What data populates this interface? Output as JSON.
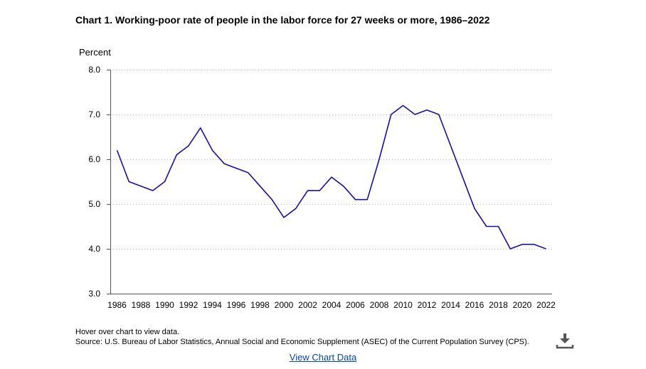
{
  "chart_data": {
    "type": "line",
    "title": "Chart 1. Working-poor rate of people in the labor force for 27 weeks or more, 1986–2022",
    "ylabel": "Percent",
    "xlabel": "",
    "ylim": [
      3.0,
      8.0
    ],
    "yticks": [
      "8.0",
      "7.0",
      "6.0",
      "5.0",
      "4.0",
      "3.0"
    ],
    "xticks": [
      "1986",
      "1988",
      "1990",
      "1992",
      "1994",
      "1996",
      "1998",
      "2000",
      "2002",
      "2004",
      "2006",
      "2008",
      "2010",
      "2012",
      "2014",
      "2016",
      "2018",
      "2020",
      "2022"
    ],
    "grid": true,
    "line_color": "#1a0f9e",
    "x": [
      1986,
      1987,
      1988,
      1989,
      1990,
      1991,
      1992,
      1993,
      1994,
      1995,
      1996,
      1997,
      1998,
      1999,
      2000,
      2001,
      2002,
      2003,
      2004,
      2005,
      2006,
      2007,
      2008,
      2009,
      2010,
      2011,
      2012,
      2013,
      2014,
      2015,
      2016,
      2017,
      2018,
      2019,
      2020,
      2021,
      2022
    ],
    "values": [
      6.2,
      5.5,
      5.4,
      5.3,
      5.5,
      6.1,
      6.3,
      6.7,
      6.2,
      5.9,
      5.8,
      5.7,
      5.4,
      5.1,
      4.7,
      4.9,
      5.3,
      5.3,
      5.6,
      5.4,
      5.1,
      5.1,
      6.0,
      7.0,
      7.2,
      7.0,
      7.1,
      7.0,
      6.3,
      5.6,
      4.9,
      4.5,
      4.5,
      4.0,
      4.1,
      4.1,
      4.0
    ]
  },
  "footer": {
    "hover_note": "Hover over chart to view data.",
    "source": "Source: U.S. Bureau of Labor Statistics, Annual Social and Economic Supplement (ASEC) of the Current Population Survey (CPS).",
    "view_link": "View Chart Data",
    "download_icon": "download-icon"
  }
}
